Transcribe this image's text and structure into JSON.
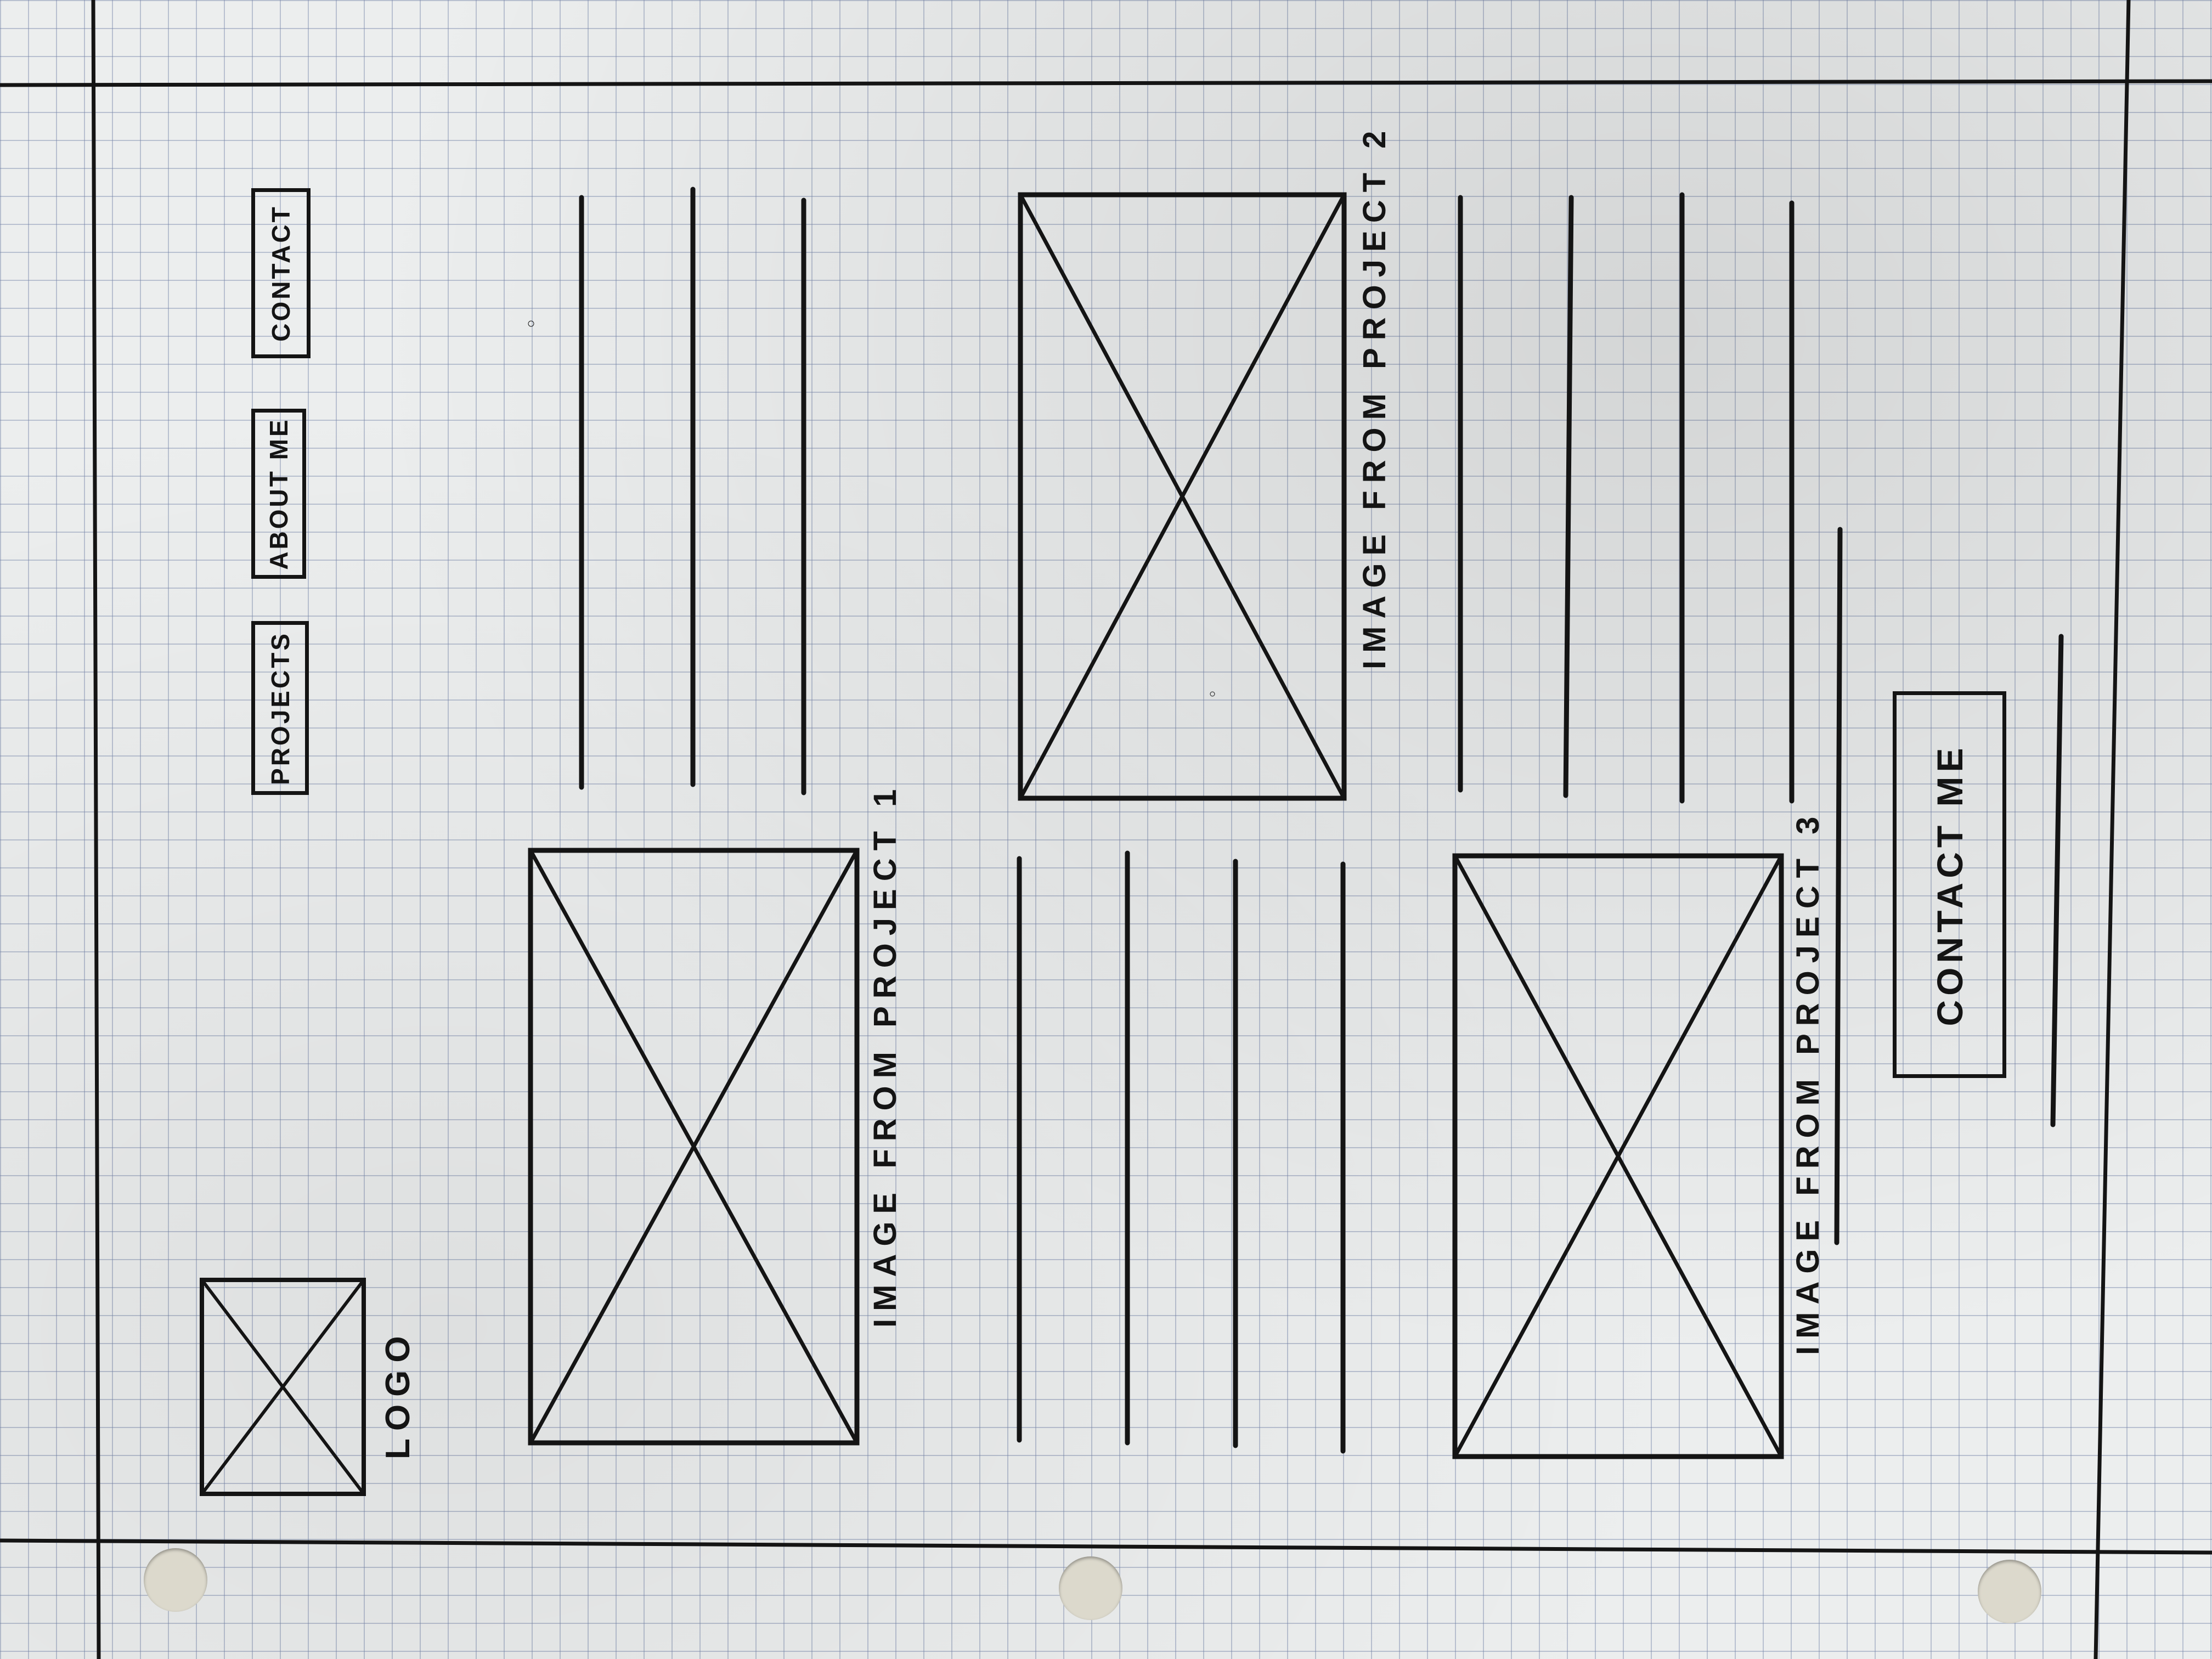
{
  "nav": {
    "projects": "PROJECTS",
    "about": "ABOUT ME",
    "contact": "CONTACT"
  },
  "logo": {
    "label": "LOGO"
  },
  "projects": {
    "p1_caption": "IMAGE FROM PROJECT 1",
    "p2_caption": "IMAGE FROM PROJECT 2",
    "p3_caption": "IMAGE FROM PROJECT 3"
  },
  "cta": {
    "contact_me": "CONTACT ME"
  },
  "colors": {
    "paper": "#eceeee",
    "ink": "#141414",
    "grid": "#7887aa"
  }
}
